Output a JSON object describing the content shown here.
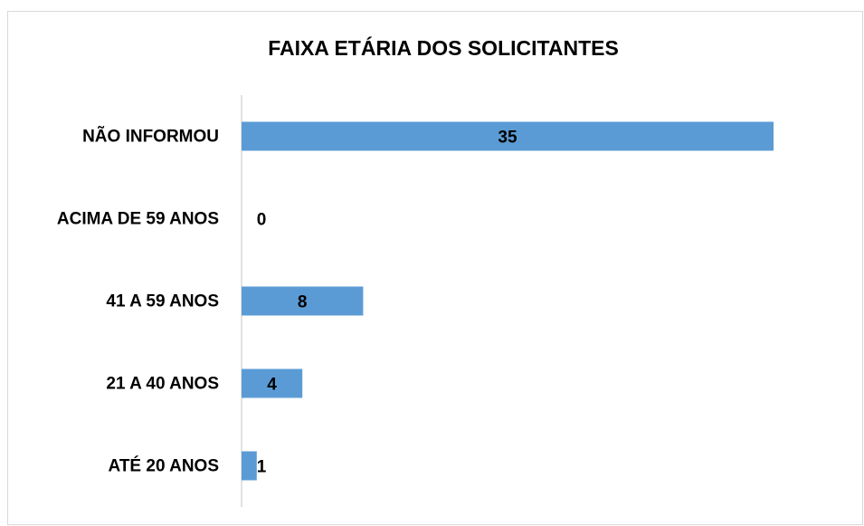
{
  "chart_data": {
    "type": "bar",
    "orientation": "horizontal",
    "title": "FAIXA ETÁRIA DOS SOLICITANTES",
    "categories": [
      "NÃO INFORMOU",
      "ACIMA DE 59 ANOS",
      "41 A 59 ANOS",
      "21 A 40 ANOS",
      "ATÉ 20 ANOS"
    ],
    "values": [
      35,
      0,
      8,
      4,
      1
    ],
    "color": "#5b9bd5"
  }
}
